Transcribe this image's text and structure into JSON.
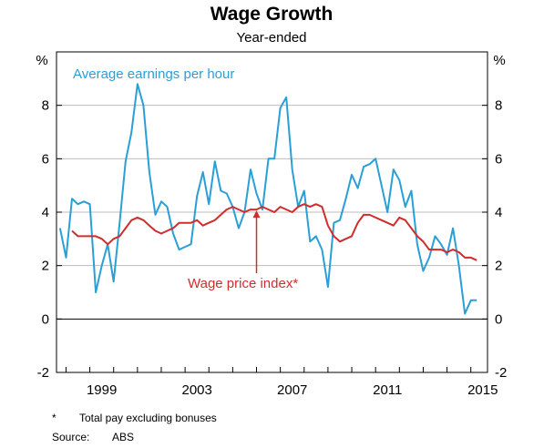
{
  "chart_data": {
    "type": "line",
    "title": "Wage Growth",
    "subtitle": "Year-ended",
    "y_unit_left": "%",
    "y_unit_right": "%",
    "ylim": [
      -2,
      10
    ],
    "yticks": [
      -2,
      0,
      2,
      4,
      6,
      8
    ],
    "y_tick_labels": [
      "-2",
      "0",
      "2",
      "4",
      "6",
      "8"
    ],
    "xlim": [
      1997.6,
      2015.7
    ],
    "x_ticks": [
      1999,
      2003,
      2007,
      2011,
      2015
    ],
    "x_tick_labels": [
      "1999",
      "2003",
      "2007",
      "2011",
      "2015"
    ],
    "grid": true,
    "series": [
      {
        "name": "Average earnings per hour",
        "color": "#2a9fd6",
        "x": [
          1997.75,
          1998.0,
          1998.25,
          1998.5,
          1998.75,
          1999.0,
          1999.25,
          1999.5,
          1999.75,
          2000.0,
          2000.25,
          2000.5,
          2000.75,
          2001.0,
          2001.25,
          2001.5,
          2001.75,
          2002.0,
          2002.25,
          2002.5,
          2002.75,
          2003.0,
          2003.25,
          2003.5,
          2003.75,
          2004.0,
          2004.25,
          2004.5,
          2004.75,
          2005.0,
          2005.25,
          2005.5,
          2005.75,
          2006.0,
          2006.25,
          2006.5,
          2006.75,
          2007.0,
          2007.25,
          2007.5,
          2007.75,
          2008.0,
          2008.25,
          2008.5,
          2008.75,
          2009.0,
          2009.25,
          2009.5,
          2009.75,
          2010.0,
          2010.25,
          2010.5,
          2010.75,
          2011.0,
          2011.25,
          2011.5,
          2011.75,
          2012.0,
          2012.25,
          2012.5,
          2012.75,
          2013.0,
          2013.25,
          2013.5,
          2013.75,
          2014.0,
          2014.25,
          2014.5,
          2014.75,
          2015.0,
          2015.25
        ],
        "values": [
          3.4,
          2.3,
          4.5,
          4.3,
          4.4,
          4.3,
          1.0,
          2.0,
          2.8,
          1.4,
          3.6,
          5.9,
          7.0,
          8.8,
          8.0,
          5.5,
          3.9,
          4.4,
          4.2,
          3.2,
          2.6,
          2.7,
          2.8,
          4.6,
          5.5,
          4.3,
          5.9,
          4.8,
          4.7,
          4.2,
          3.4,
          4.0,
          5.6,
          4.7,
          4.1,
          6.0,
          6.0,
          7.9,
          8.3,
          5.6,
          4.2,
          4.8,
          2.9,
          3.1,
          2.6,
          1.2,
          3.6,
          3.7,
          4.5,
          5.4,
          4.9,
          5.7,
          5.8,
          6.0,
          5.0,
          4.0,
          5.6,
          5.2,
          4.2,
          4.8,
          2.8,
          1.8,
          2.3,
          3.1,
          2.8,
          2.4,
          3.4,
          2.0,
          0.2,
          0.7,
          0.7
        ]
      },
      {
        "name": "Wage price index*",
        "color": "#d12c2c",
        "x": [
          1998.25,
          1998.5,
          1998.75,
          1999.0,
          1999.25,
          1999.5,
          1999.75,
          2000.0,
          2000.25,
          2000.5,
          2000.75,
          2001.0,
          2001.25,
          2001.5,
          2001.75,
          2002.0,
          2002.25,
          2002.5,
          2002.75,
          2003.0,
          2003.25,
          2003.5,
          2003.75,
          2004.0,
          2004.25,
          2004.5,
          2004.75,
          2005.0,
          2005.25,
          2005.5,
          2005.75,
          2006.0,
          2006.25,
          2006.5,
          2006.75,
          2007.0,
          2007.25,
          2007.5,
          2007.75,
          2008.0,
          2008.25,
          2008.5,
          2008.75,
          2009.0,
          2009.25,
          2009.5,
          2009.75,
          2010.0,
          2010.25,
          2010.5,
          2010.75,
          2011.0,
          2011.25,
          2011.5,
          2011.75,
          2012.0,
          2012.25,
          2012.5,
          2012.75,
          2013.0,
          2013.25,
          2013.5,
          2013.75,
          2014.0,
          2014.25,
          2014.5,
          2014.75,
          2015.0,
          2015.25
        ],
        "values": [
          3.3,
          3.1,
          3.1,
          3.1,
          3.1,
          3.0,
          2.8,
          3.0,
          3.1,
          3.4,
          3.7,
          3.8,
          3.7,
          3.5,
          3.3,
          3.2,
          3.3,
          3.4,
          3.6,
          3.6,
          3.6,
          3.7,
          3.5,
          3.6,
          3.7,
          3.9,
          4.1,
          4.2,
          4.1,
          4.0,
          4.1,
          4.1,
          4.2,
          4.1,
          4.0,
          4.2,
          4.1,
          4.0,
          4.2,
          4.3,
          4.2,
          4.3,
          4.2,
          3.5,
          3.1,
          2.9,
          3.0,
          3.1,
          3.6,
          3.9,
          3.9,
          3.8,
          3.7,
          3.6,
          3.5,
          3.8,
          3.7,
          3.4,
          3.1,
          2.9,
          2.6,
          2.6,
          2.6,
          2.5,
          2.6,
          2.5,
          2.3,
          2.3,
          2.2
        ]
      }
    ],
    "annotations": {
      "earnings_label": "Average earnings per hour",
      "wpi_label": "Wage price index*",
      "arrow_target": {
        "x": 2006.0,
        "y": 4.1
      }
    },
    "notes": {
      "footnote_marker": "*",
      "footnote_text": "Total pay excluding bonuses",
      "source_label": "Source:",
      "source_text": "ABS"
    }
  }
}
